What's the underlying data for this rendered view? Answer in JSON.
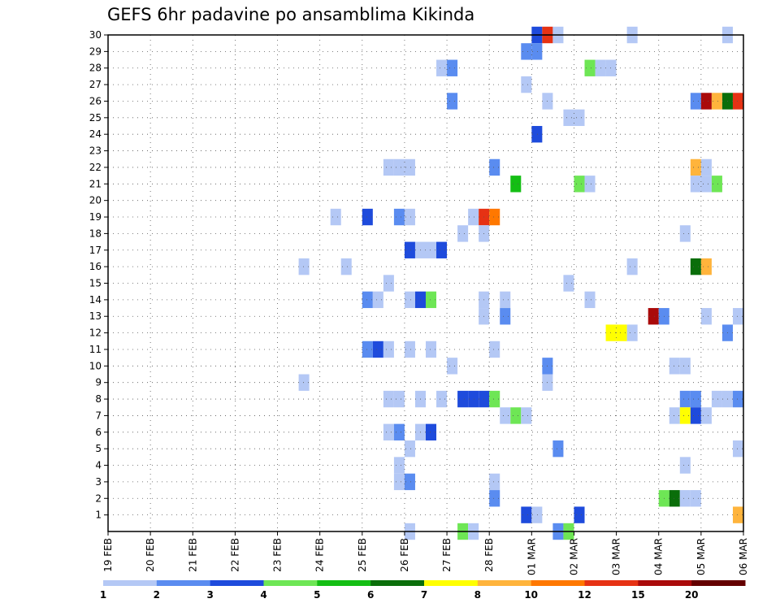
{
  "title": "GEFS 6hr padavine po ansamblima Kikinda",
  "chart_data": {
    "type": "heatmap",
    "title": "GEFS 6hr padavine po ansamblima Kikinda",
    "x_ticks": [
      "19 FEB",
      "20 FEB",
      "21 FEB",
      "22 FEB",
      "23 FEB",
      "24 FEB",
      "25 FEB",
      "26 FEB",
      "27 FEB",
      "28 FEB",
      "01 MAR",
      "02 MAR",
      "03 MAR",
      "04 MAR",
      "05 MAR",
      "06 MAR"
    ],
    "x_range_steps": 60,
    "y_ticks": [
      1,
      2,
      3,
      4,
      5,
      6,
      7,
      8,
      9,
      10,
      11,
      12,
      13,
      14,
      15,
      16,
      17,
      18,
      19,
      20,
      21,
      22,
      23,
      24,
      25,
      26,
      27,
      28,
      29,
      30
    ],
    "y_range": [
      0,
      30
    ],
    "grid": true,
    "color_levels": [
      "1",
      "2",
      "3",
      "4",
      "5",
      "6",
      "7",
      "8",
      "10",
      "12",
      "15",
      "20"
    ],
    "colors": [
      "#b4c8f5",
      "#5a8cf0",
      "#1e4bdc",
      "#6ee655",
      "#14be14",
      "#0a6e0a",
      "#ffff00",
      "#ffb43c",
      "#ff7800",
      "#e63214",
      "#aa0a0a",
      "#640000"
    ],
    "cells": [
      [
        40,
        30,
        2
      ],
      [
        41,
        30,
        9
      ],
      [
        42,
        30,
        0
      ],
      [
        49,
        30,
        0
      ],
      [
        58,
        30,
        0
      ],
      [
        39,
        29,
        1
      ],
      [
        40,
        29,
        1
      ],
      [
        31,
        28,
        0
      ],
      [
        32,
        28,
        1
      ],
      [
        45,
        28,
        3
      ],
      [
        46,
        28,
        0
      ],
      [
        47,
        28,
        0
      ],
      [
        39,
        27,
        0
      ],
      [
        32,
        26,
        1
      ],
      [
        41,
        26,
        0
      ],
      [
        55,
        26,
        1
      ],
      [
        56,
        26,
        10
      ],
      [
        57,
        26,
        7
      ],
      [
        58,
        26,
        5
      ],
      [
        59,
        26,
        9
      ],
      [
        43,
        25,
        0
      ],
      [
        44,
        25,
        0
      ],
      [
        40,
        24,
        2
      ],
      [
        26,
        22,
        0
      ],
      [
        27,
        22,
        0
      ],
      [
        28,
        22,
        0
      ],
      [
        36,
        22,
        1
      ],
      [
        55,
        22,
        7
      ],
      [
        56,
        22,
        0
      ],
      [
        38,
        21,
        4
      ],
      [
        44,
        21,
        3
      ],
      [
        45,
        21,
        0
      ],
      [
        55,
        21,
        0
      ],
      [
        56,
        21,
        0
      ],
      [
        57,
        21,
        3
      ],
      [
        21,
        19,
        0
      ],
      [
        24,
        19,
        2
      ],
      [
        27,
        19,
        1
      ],
      [
        28,
        19,
        0
      ],
      [
        34,
        19,
        0
      ],
      [
        35,
        19,
        9
      ],
      [
        36,
        19,
        8
      ],
      [
        33,
        18,
        0
      ],
      [
        35,
        18,
        0
      ],
      [
        54,
        18,
        0
      ],
      [
        28,
        17,
        2
      ],
      [
        29,
        17,
        0
      ],
      [
        30,
        17,
        0
      ],
      [
        31,
        17,
        2
      ],
      [
        18,
        16,
        0
      ],
      [
        22,
        16,
        0
      ],
      [
        49,
        16,
        0
      ],
      [
        55,
        16,
        5
      ],
      [
        56,
        16,
        7
      ],
      [
        26,
        15,
        0
      ],
      [
        43,
        15,
        0
      ],
      [
        24,
        14,
        1
      ],
      [
        25,
        14,
        0
      ],
      [
        28,
        14,
        0
      ],
      [
        29,
        14,
        2
      ],
      [
        30,
        14,
        3
      ],
      [
        35,
        14,
        0
      ],
      [
        37,
        14,
        0
      ],
      [
        45,
        14,
        0
      ],
      [
        35,
        13,
        0
      ],
      [
        37,
        13,
        1
      ],
      [
        51,
        13,
        10
      ],
      [
        52,
        13,
        1
      ],
      [
        56,
        13,
        0
      ],
      [
        59,
        13,
        0
      ],
      [
        47,
        12,
        6
      ],
      [
        48,
        12,
        6
      ],
      [
        49,
        12,
        0
      ],
      [
        58,
        12,
        1
      ],
      [
        24,
        11,
        1
      ],
      [
        25,
        11,
        2
      ],
      [
        26,
        11,
        0
      ],
      [
        28,
        11,
        0
      ],
      [
        30,
        11,
        0
      ],
      [
        36,
        11,
        0
      ],
      [
        32,
        10,
        0
      ],
      [
        41,
        10,
        1
      ],
      [
        53,
        10,
        0
      ],
      [
        54,
        10,
        0
      ],
      [
        18,
        9,
        0
      ],
      [
        41,
        9,
        0
      ],
      [
        26,
        8,
        0
      ],
      [
        27,
        8,
        0
      ],
      [
        29,
        8,
        0
      ],
      [
        31,
        8,
        0
      ],
      [
        33,
        8,
        2
      ],
      [
        34,
        8,
        2
      ],
      [
        35,
        8,
        2
      ],
      [
        36,
        8,
        3
      ],
      [
        54,
        8,
        1
      ],
      [
        55,
        8,
        1
      ],
      [
        57,
        8,
        0
      ],
      [
        58,
        8,
        0
      ],
      [
        59,
        8,
        1
      ],
      [
        37,
        7,
        0
      ],
      [
        38,
        7,
        3
      ],
      [
        39,
        7,
        0
      ],
      [
        53,
        7,
        0
      ],
      [
        54,
        7,
        6
      ],
      [
        55,
        7,
        2
      ],
      [
        56,
        7,
        0
      ],
      [
        26,
        6,
        0
      ],
      [
        27,
        6,
        1
      ],
      [
        29,
        6,
        0
      ],
      [
        30,
        6,
        2
      ],
      [
        28,
        5,
        0
      ],
      [
        42,
        5,
        1
      ],
      [
        59,
        5,
        0
      ],
      [
        27,
        4,
        0
      ],
      [
        54,
        4,
        0
      ],
      [
        27,
        3,
        0
      ],
      [
        28,
        3,
        1
      ],
      [
        36,
        3,
        0
      ],
      [
        36,
        2,
        1
      ],
      [
        52,
        2,
        3
      ],
      [
        53,
        2,
        5
      ],
      [
        54,
        2,
        0
      ],
      [
        55,
        2,
        0
      ],
      [
        39,
        1,
        2
      ],
      [
        40,
        1,
        0
      ],
      [
        44,
        1,
        2
      ],
      [
        59,
        1,
        7
      ],
      [
        28,
        0,
        0
      ],
      [
        33,
        0,
        3
      ],
      [
        34,
        0,
        0
      ],
      [
        42,
        0,
        1
      ],
      [
        43,
        0,
        3
      ]
    ]
  }
}
